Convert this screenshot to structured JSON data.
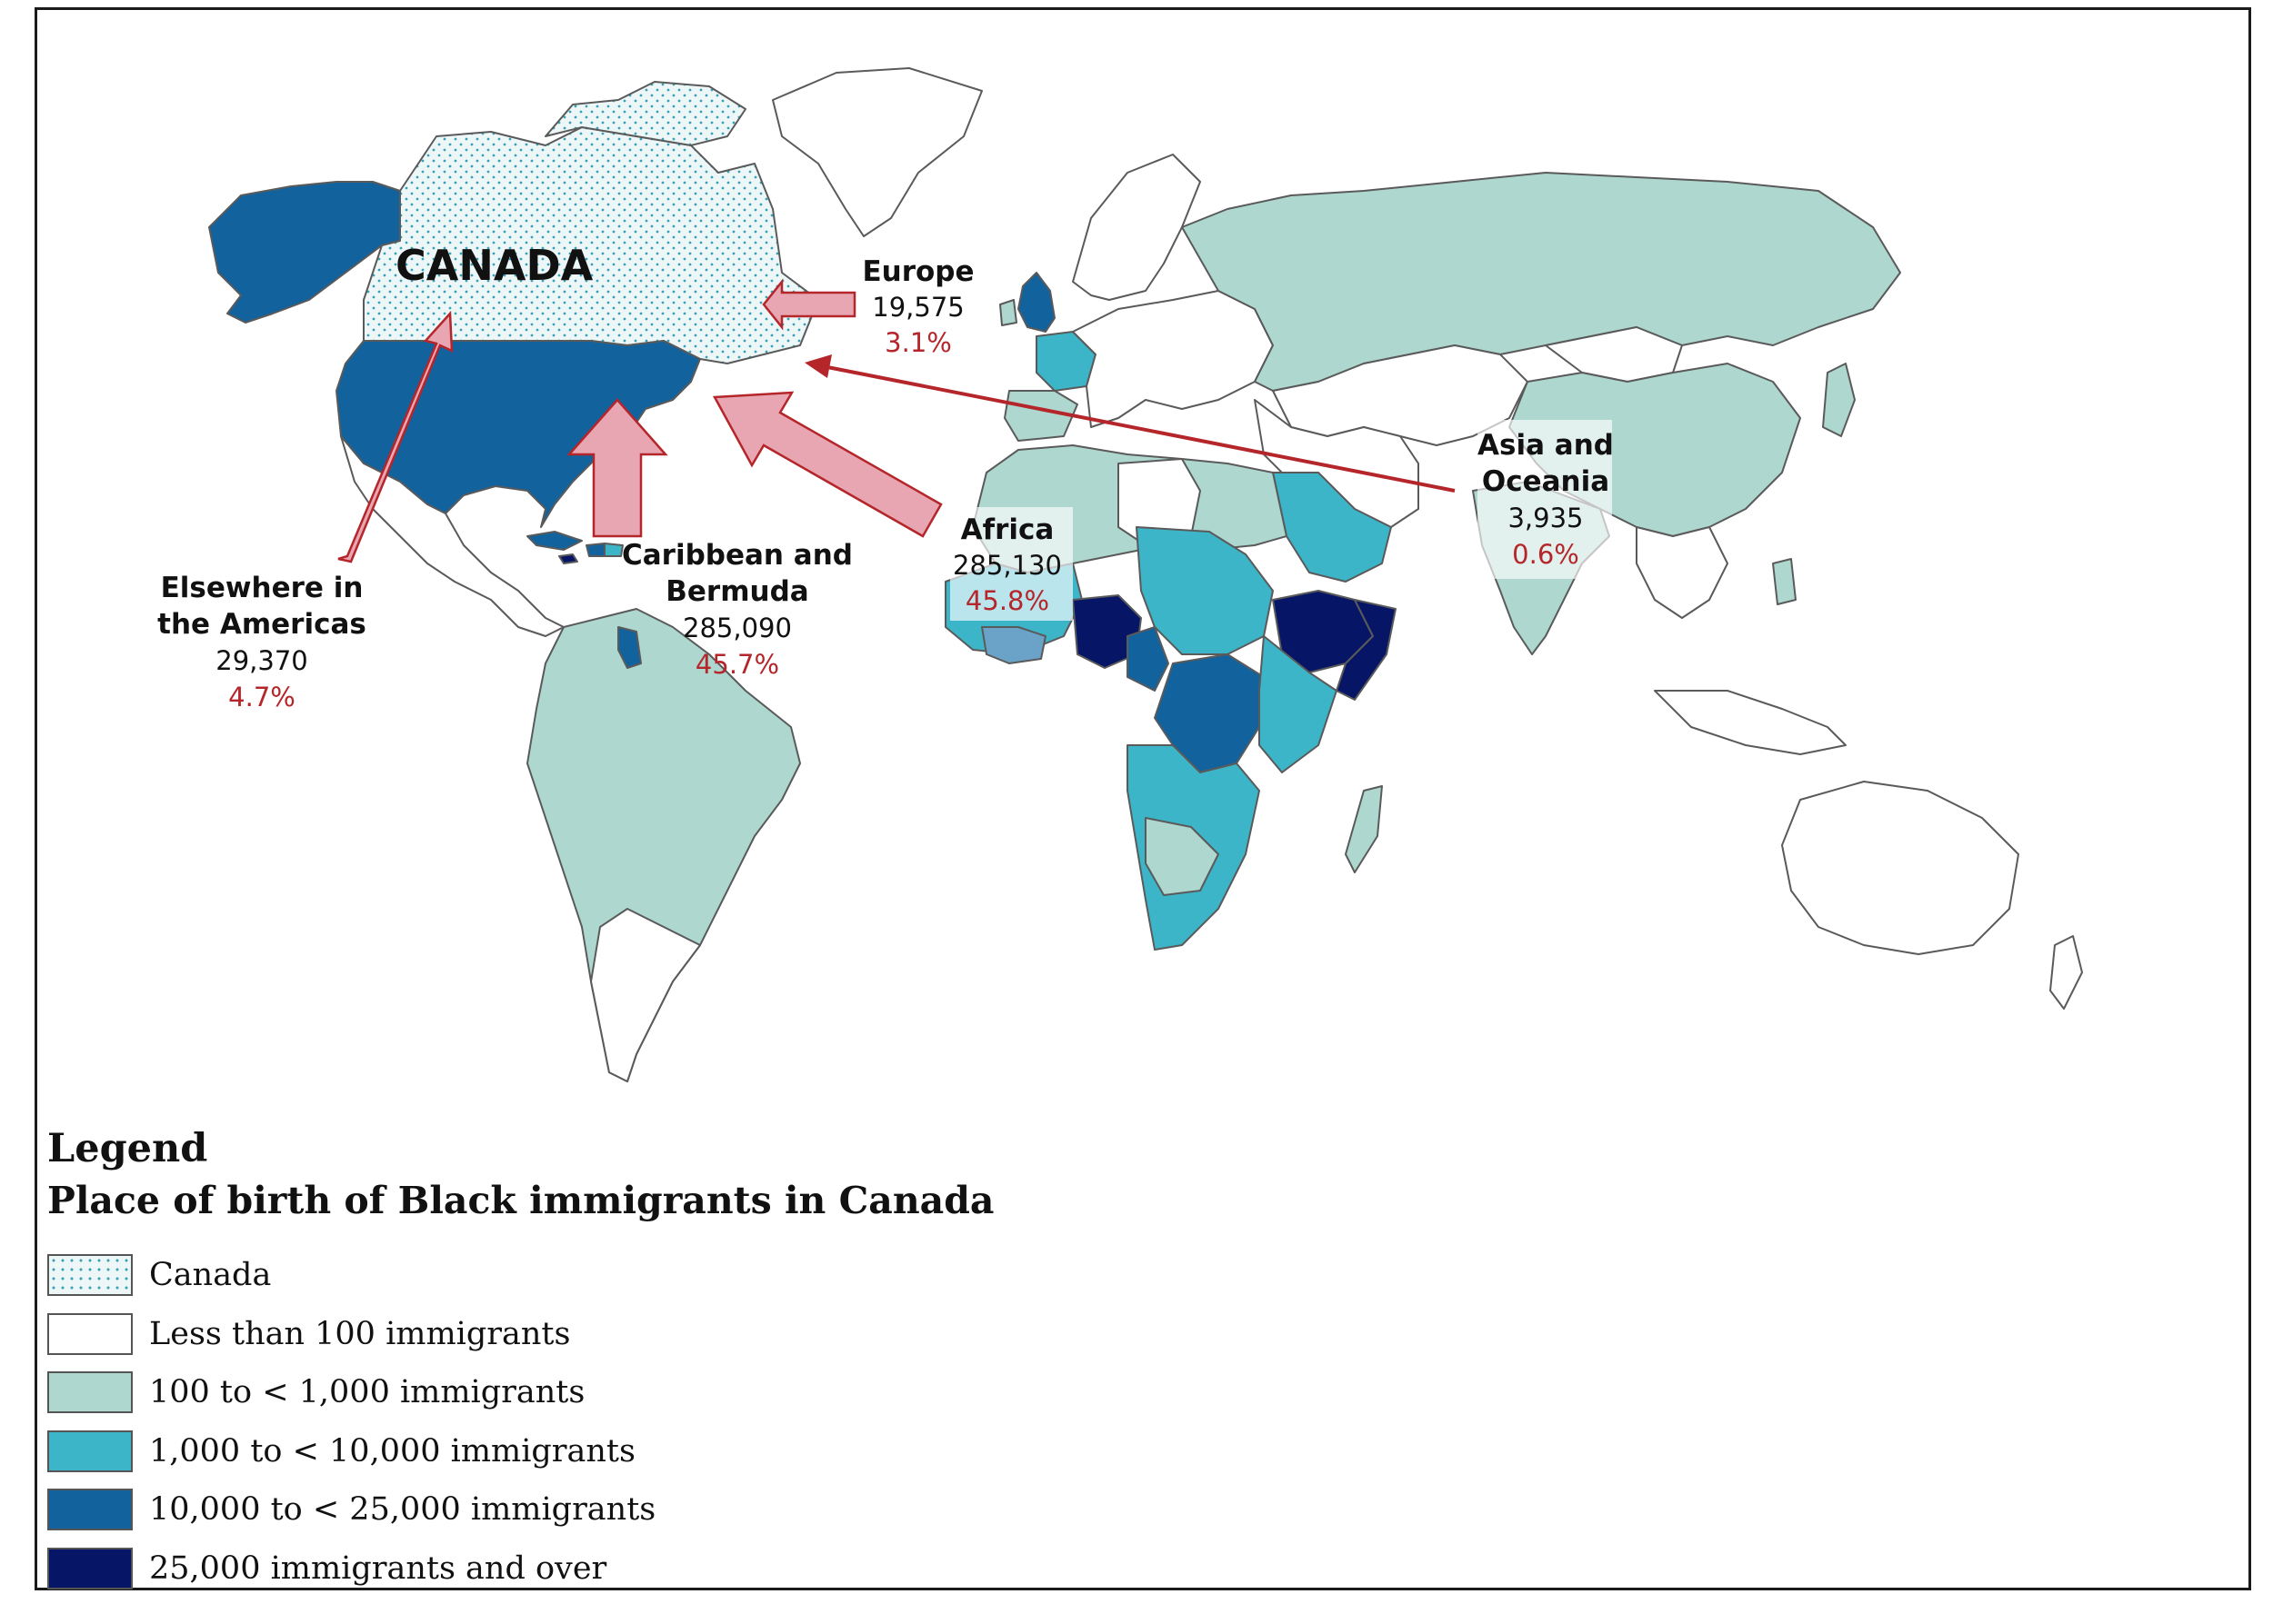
{
  "map": {
    "canada_label": "CANADA",
    "regions": [
      {
        "label_lines": [
          "Europe"
        ],
        "count": "19,575",
        "pct": "3.1%"
      },
      {
        "label_lines": [
          "Asia and",
          "Oceania"
        ],
        "count": "3,935",
        "pct": "0.6%"
      },
      {
        "label_lines": [
          "Africa"
        ],
        "count": "285,130",
        "pct": "45.8%"
      },
      {
        "label_lines": [
          "Caribbean and",
          "Bermuda"
        ],
        "count": "285,090",
        "pct": "45.7%"
      },
      {
        "label_lines": [
          "Elsewhere in",
          "the Americas"
        ],
        "count": "29,370",
        "pct": "4.7%"
      }
    ]
  },
  "colors": {
    "canada_fill": "#eef7f8",
    "canada_dots": "#3aa0b5",
    "lt100": "#ffffff",
    "c100_1000": "#aed8cf",
    "c1000_10000": "#3db5c8",
    "c10000_25000": "#12629e",
    "c25000_plus": "#061566",
    "arrow_fill": "#e7a6b1",
    "arrow_stroke": "#b5262b",
    "border": "#5a5a5a"
  },
  "legend": {
    "title": "Legend",
    "subtitle": "Place of birth of Black immigrants in Canada",
    "items": [
      {
        "label": "Canada",
        "key": "canada"
      },
      {
        "label": "Less than 100 immigrants",
        "key": "lt100"
      },
      {
        "label": "100 to < 1,000 immigrants",
        "key": "c100_1000"
      },
      {
        "label": "1,000 to < 10,000 immigrants",
        "key": "c1000_10000"
      },
      {
        "label": "10,000 to < 25,000 immigrants",
        "key": "c10000_25000"
      },
      {
        "label": "25,000 immigrants and over",
        "key": "c25000_plus"
      }
    ]
  }
}
